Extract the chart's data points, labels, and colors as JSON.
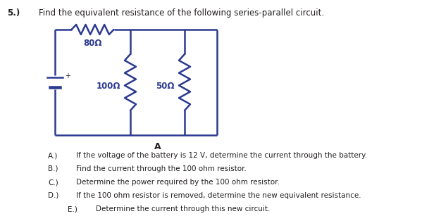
{
  "title_number": "5.)",
  "title_text": "Find the equivalent resistance of the following series-parallel circuit.",
  "circuit": {
    "line_color": "#2B3990",
    "line_width": 1.8,
    "resistor_80_label": "80Ω",
    "resistor_100_label": "100Ω",
    "resistor_50_label": "50Ω",
    "node_A_label": "A"
  },
  "questions": [
    {
      "label": "A.)",
      "text": "If the voltage of the battery is 12 V, determine the current through the battery."
    },
    {
      "label": "B.)",
      "text": "Find the current through the 100 ohm resistor."
    },
    {
      "label": "C.)",
      "text": "Determine the power required by the 100 ohm resistor."
    },
    {
      "label": "D.)",
      "text": "If the 100 ohm resistor is removed, determine the new equivalent resistance."
    },
    {
      "label": "E.)",
      "text": "Determine the current through this new circuit.",
      "indent": true
    }
  ],
  "font_color": "#231F20",
  "bg_color": "#FFFFFF",
  "font_size_title": 8.5,
  "font_size_questions": 7.5
}
